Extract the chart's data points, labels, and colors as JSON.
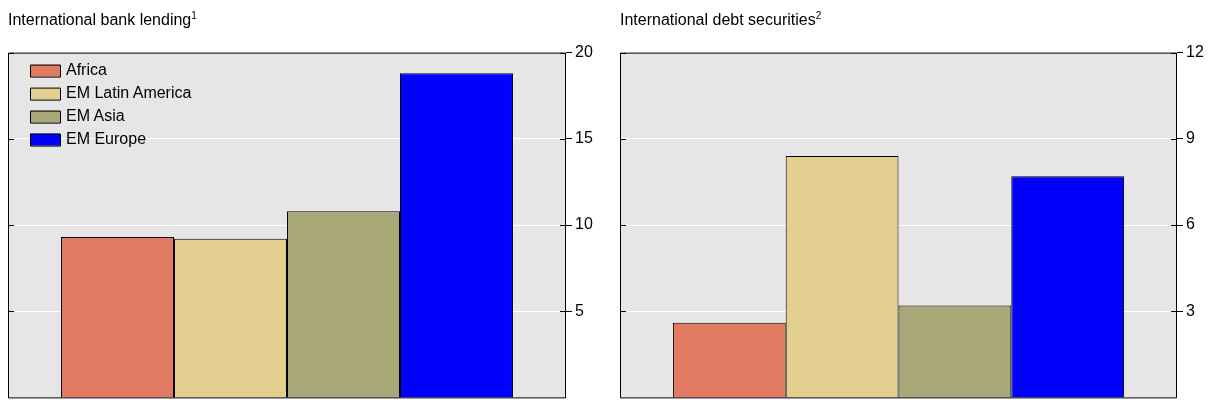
{
  "chart_data": [
    {
      "type": "bar",
      "title": "International bank lending$^{1}$",
      "categories": [
        null
      ],
      "series": [
        {
          "name": "Africa",
          "color": "#e07b62",
          "values": [
            9.3
          ]
        },
        {
          "name": "EM Latin America",
          "color": "#e3d091",
          "values": [
            9.2
          ]
        },
        {
          "name": "EM Asia",
          "color": "#a8a878",
          "values": [
            10.8
          ]
        },
        {
          "name": "EM Europe",
          "color": "#0000ff",
          "values": [
            18.8
          ]
        }
      ],
      "ylim": [
        0,
        20
      ],
      "yticks": [
        5,
        10,
        15,
        20
      ],
      "grid": "y",
      "legend": "top left",
      "tick_labels": "y"
    },
    {
      "type": "bar",
      "title": "International debt securities$^{2}$",
      "categories": [
        null
      ],
      "series": [
        {
          "color": "#e07b62",
          "values": [
            2.6
          ]
        },
        {
          "color": "#e3d091",
          "values": [
            8.4
          ]
        },
        {
          "color": "#a8a878",
          "values": [
            3.2
          ]
        },
        {
          "color": "#0000ff",
          "values": [
            7.7
          ]
        }
      ],
      "ylim": [
        0,
        12
      ],
      "yticks": [
        3,
        6,
        9,
        12
      ],
      "grid": "y",
      "tick_labels": "y"
    }
  ]
}
